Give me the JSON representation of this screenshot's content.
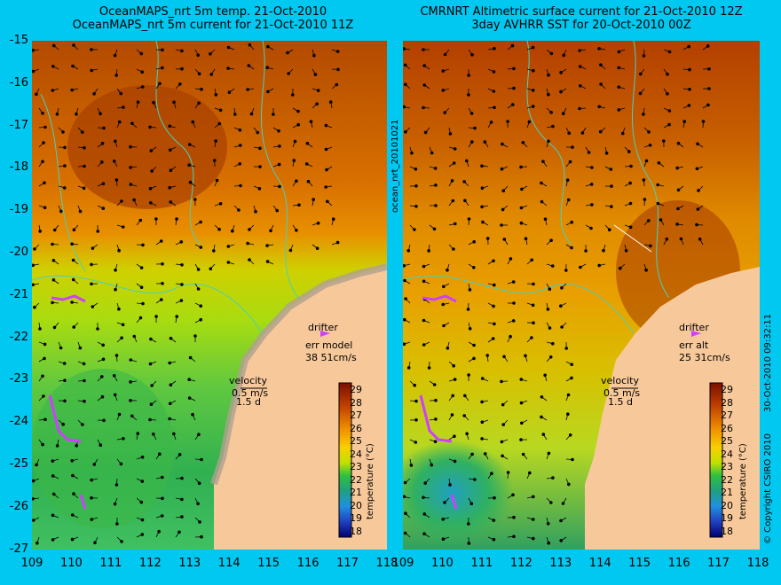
{
  "left_panel": {
    "title_line1": "OceanMAPS_nrt 5m temp. 21-Oct-2010",
    "title_line2": "OceanMAPS_nrt 5m current for 21-Oct-2010 11Z",
    "drifter_label": "drifter",
    "drifter_err_label": "err model",
    "drifter_err_values": "38 51cm/s",
    "velocity_label": "velocity",
    "velocity_speed": "0.5 m/s",
    "velocity_time": "1.5 d",
    "colorbar_title": "temperature (°C)"
  },
  "right_panel": {
    "title_line1": "CMRNRT Altimetric surface current for 21-Oct-2010 12Z",
    "title_line2": "3day AVHRR SST for 20-Oct-2010 00Z",
    "drifter_label": "drifter",
    "drifter_err_label": "err alt",
    "drifter_err_values": "25 31cm/s",
    "velocity_label": "velocity",
    "velocity_speed": "0.5 m/s",
    "velocity_time": "1.5 d",
    "colorbar_title": "temperature (°C)"
  },
  "side_text": {
    "source_id": "ocean_nrt_20101021",
    "timestamp": "30-Oct-2010 09:32:11",
    "copyright": "© Copyright CSIRO 2010"
  },
  "axes": {
    "y_ticks": [
      "-15",
      "-16",
      "-17",
      "-18",
      "-19",
      "-20",
      "-21",
      "-22",
      "-23",
      "-24",
      "-25",
      "-26",
      "-27"
    ],
    "x_ticks": [
      "109",
      "110",
      "111",
      "112",
      "113",
      "114",
      "115",
      "116",
      "117",
      "118"
    ],
    "x_range": [
      109,
      118
    ],
    "y_range": [
      -27,
      -15
    ]
  },
  "colorbar": {
    "ticks": [
      "29",
      "28",
      "27",
      "26",
      "25",
      "24",
      "23",
      "22",
      "21",
      "20",
      "19",
      "18"
    ],
    "colors": [
      "#8b1a00",
      "#b33a00",
      "#d86a00",
      "#f0a000",
      "#f5c800",
      "#c8e000",
      "#40c040",
      "#20a060",
      "#2080d0",
      "#2050c0",
      "#1030a0",
      "#001070"
    ]
  },
  "colors": {
    "background": "#00c8f0",
    "land": "#f7c89a",
    "coast": "#48d0c0",
    "drifter": "#cc40ff"
  }
}
